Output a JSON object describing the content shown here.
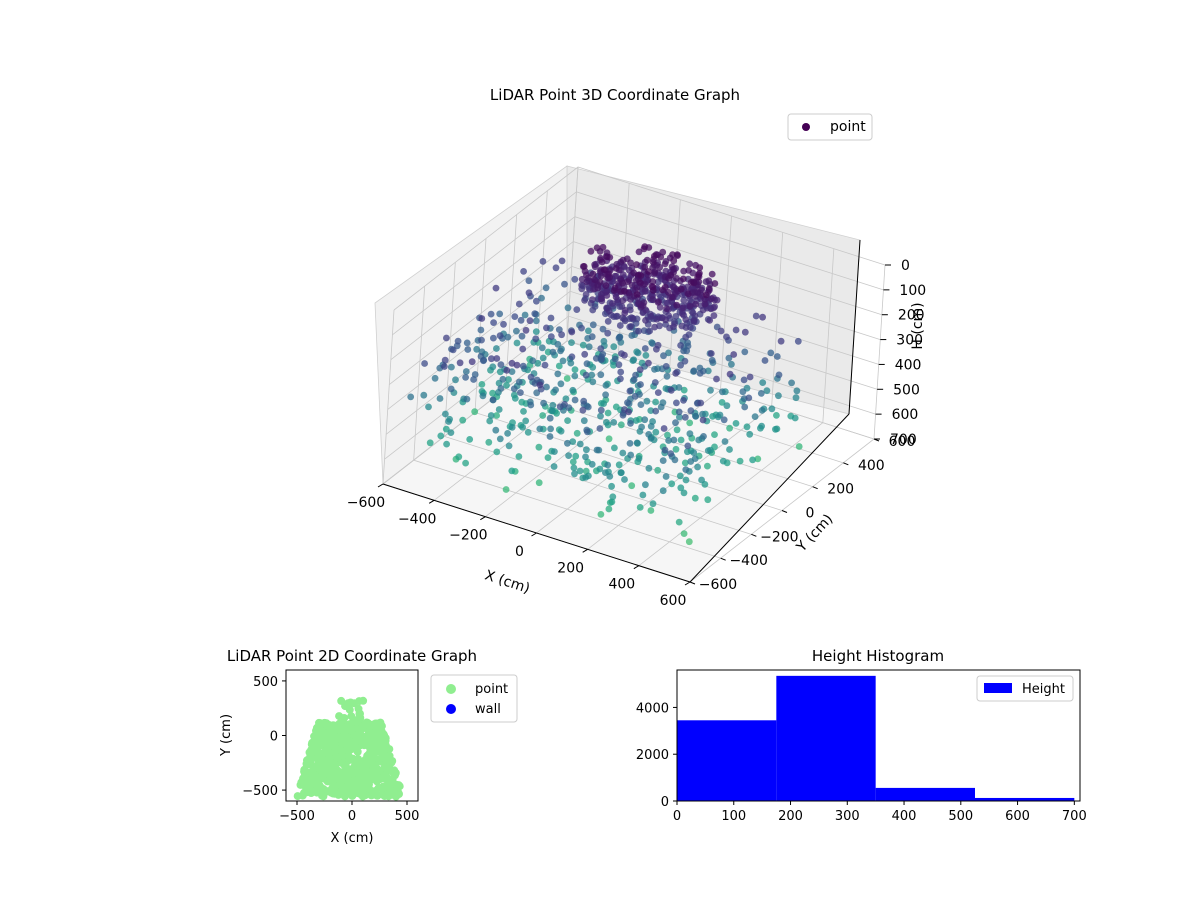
{
  "chart_data": [
    {
      "type": "scatter",
      "projection": "3d",
      "title": "LiDAR Point 3D Coordinate Graph",
      "xlabel": "X (cm)",
      "ylabel": "Y (cm)",
      "zlabel": "H (cm)",
      "xlim": [
        -600,
        600
      ],
      "ylim": [
        -600,
        600
      ],
      "zlim": [
        0,
        700
      ],
      "z_inverted": true,
      "xticks": [
        "−600",
        "−400",
        "−200",
        "0",
        "200",
        "400",
        "600"
      ],
      "yticks": [
        "−600",
        "−400",
        "−200",
        "0",
        "200",
        "400",
        "600"
      ],
      "zticks": [
        "0",
        "100",
        "200",
        "300",
        "400",
        "500",
        "600",
        "700"
      ],
      "colormap": "viridis",
      "grid": true,
      "legend": {
        "placement": "upper-right",
        "entries": [
          {
            "label": "point",
            "color": "#440154"
          }
        ]
      },
      "series": [
        {
          "name": "point"
        }
      ],
      "point_distribution": {
        "x_range": [
          -550,
          500
        ],
        "y_range": [
          -560,
          320
        ],
        "h_range": [
          0,
          700
        ],
        "shape": "dome"
      }
    },
    {
      "type": "scatter",
      "title": "LiDAR Point 2D Coordinate Graph",
      "xlabel": "X (cm)",
      "ylabel": "Y (cm)",
      "xlim": [
        -600,
        600
      ],
      "ylim": [
        -600,
        600
      ],
      "xticks": [
        "−500",
        "0",
        "500"
      ],
      "yticks": [
        "−500",
        "0",
        "500"
      ],
      "legend": {
        "placement": "outside-right",
        "entries": [
          {
            "label": "point",
            "color": "#90ee90"
          },
          {
            "label": "wall",
            "color": "#0000ff"
          }
        ]
      },
      "series": [
        {
          "name": "point",
          "color": "#90ee90"
        },
        {
          "name": "wall",
          "color": "#0000ff"
        }
      ],
      "point_distribution": {
        "x_range": [
          -520,
          480
        ],
        "y_range": [
          -560,
          320
        ]
      }
    },
    {
      "type": "bar",
      "subtype": "histogram",
      "title": "Height Histogram",
      "bin_edges": [
        0,
        175,
        350,
        525,
        700
      ],
      "values": [
        3450,
        5350,
        560,
        130
      ],
      "xlim": [
        0,
        710
      ],
      "ylim": [
        0,
        5600
      ],
      "xticks": [
        "0",
        "100",
        "200",
        "300",
        "400",
        "500",
        "600",
        "700"
      ],
      "yticks": [
        "0",
        "2000",
        "4000"
      ],
      "color": "#0000ff",
      "legend": {
        "placement": "upper-right",
        "entries": [
          {
            "label": "Height",
            "color": "#0000ff"
          }
        ]
      },
      "series": [
        {
          "name": "Height",
          "color": "#0000ff"
        }
      ]
    }
  ]
}
